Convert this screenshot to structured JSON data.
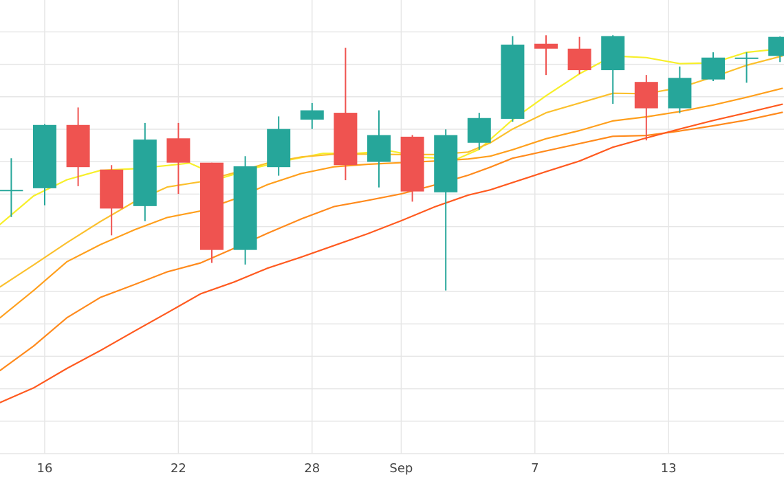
{
  "chart_data": {
    "type": "candlestick",
    "title": "",
    "xlabel": "",
    "ylabel": "",
    "x_ticks": [
      {
        "day": 16,
        "label": "16"
      },
      {
        "day": 22,
        "label": "22"
      },
      {
        "day": 28,
        "label": "28"
      },
      {
        "day": 32,
        "label": "Sep"
      },
      {
        "day": 38,
        "label": "7"
      },
      {
        "day": 44,
        "label": "13"
      }
    ],
    "x_range": [
      14,
      49.1
    ],
    "y_range": [
      0,
      100
    ],
    "grid": true,
    "legend": "none",
    "colors": {
      "up": "#26a69a",
      "down": "#ef5350",
      "grid": "#e6e6e6",
      "axis_text": "#444444"
    },
    "candles": [
      {
        "day": 14.5,
        "open": 65.0,
        "high": 72.8,
        "low": 58.3,
        "close": 65.0
      },
      {
        "day": 16,
        "open": 65.4,
        "high": 81.2,
        "low": 61.2,
        "close": 81.0
      },
      {
        "day": 17.5,
        "open": 81.0,
        "high": 85.3,
        "low": 65.9,
        "close": 70.6
      },
      {
        "day": 19,
        "open": 70.0,
        "high": 71.1,
        "low": 53.8,
        "close": 60.4
      },
      {
        "day": 20.5,
        "open": 61.0,
        "high": 81.5,
        "low": 57.3,
        "close": 77.4
      },
      {
        "day": 22,
        "open": 77.7,
        "high": 81.5,
        "low": 64.0,
        "close": 71.7
      },
      {
        "day": 23.5,
        "open": 71.7,
        "high": 71.7,
        "low": 47.0,
        "close": 50.2
      },
      {
        "day": 25,
        "open": 50.2,
        "high": 73.3,
        "low": 46.6,
        "close": 70.8
      },
      {
        "day": 26.5,
        "open": 70.6,
        "high": 83.1,
        "low": 68.5,
        "close": 80.0
      },
      {
        "day": 28,
        "open": 82.3,
        "high": 86.4,
        "low": 80.0,
        "close": 84.6
      },
      {
        "day": 29.5,
        "open": 84.0,
        "high": 100.0,
        "low": 67.4,
        "close": 71.1
      },
      {
        "day": 31,
        "open": 71.9,
        "high": 84.6,
        "low": 65.6,
        "close": 78.5
      },
      {
        "day": 32.5,
        "open": 78.1,
        "high": 78.5,
        "low": 62.1,
        "close": 64.6
      },
      {
        "day": 34,
        "open": 64.4,
        "high": 79.9,
        "low": 40.2,
        "close": 78.5
      },
      {
        "day": 35.5,
        "open": 76.6,
        "high": 84.0,
        "low": 74.9,
        "close": 82.7
      },
      {
        "day": 37,
        "open": 82.5,
        "high": 102.9,
        "low": 81.8,
        "close": 100.8
      },
      {
        "day": 38.5,
        "open": 101.0,
        "high": 103.1,
        "low": 93.3,
        "close": 99.8
      },
      {
        "day": 40,
        "open": 99.8,
        "high": 102.7,
        "low": 93.5,
        "close": 94.5
      },
      {
        "day": 41.5,
        "open": 94.5,
        "high": 103.1,
        "low": 86.2,
        "close": 102.9
      },
      {
        "day": 43,
        "open": 91.6,
        "high": 93.3,
        "low": 77.2,
        "close": 85.1
      },
      {
        "day": 44.5,
        "open": 85.1,
        "high": 95.4,
        "low": 83.9,
        "close": 92.6
      },
      {
        "day": 46,
        "open": 92.2,
        "high": 98.9,
        "low": 91.8,
        "close": 97.6
      },
      {
        "day": 47.5,
        "open": 97.6,
        "high": 98.9,
        "low": 91.4,
        "close": 97.6
      },
      {
        "day": 49,
        "open": 98.0,
        "high": 102.8,
        "low": 96.5,
        "close": 102.7
      }
    ],
    "moving_averages": [
      {
        "color": "#f7ef2a",
        "points": [
          [
            14,
            56.5
          ],
          [
            15.5,
            63.5
          ],
          [
            17,
            67.5
          ],
          [
            18.5,
            69.8
          ],
          [
            20,
            70.2
          ],
          [
            21.5,
            71.0
          ],
          [
            22.5,
            71.6
          ],
          [
            24,
            68.0
          ],
          [
            25.5,
            70.5
          ],
          [
            27,
            72.4
          ],
          [
            28.5,
            74.0
          ],
          [
            30,
            74.0
          ],
          [
            31.5,
            74.6
          ],
          [
            33,
            73.0
          ],
          [
            34.5,
            72.6
          ],
          [
            35.5,
            75.0
          ],
          [
            37,
            82.3
          ],
          [
            38.5,
            88.2
          ],
          [
            40,
            93.6
          ],
          [
            41.5,
            98.0
          ],
          [
            43,
            97.6
          ],
          [
            44.5,
            96.1
          ],
          [
            46,
            96.3
          ],
          [
            47.5,
            98.9
          ],
          [
            49.1,
            99.8
          ]
        ]
      },
      {
        "color": "#fbc02d",
        "points": [
          [
            14,
            41.1
          ],
          [
            15.5,
            46.5
          ],
          [
            17,
            52.0
          ],
          [
            18.5,
            57.2
          ],
          [
            20,
            62.0
          ],
          [
            21.5,
            65.7
          ],
          [
            23,
            67.0
          ],
          [
            24.5,
            69.2
          ],
          [
            26,
            71.6
          ],
          [
            27.5,
            73.1
          ],
          [
            29,
            73.8
          ],
          [
            30.5,
            73.8
          ],
          [
            32,
            73.7
          ],
          [
            33.5,
            73.7
          ],
          [
            35,
            74.3
          ],
          [
            36,
            76.6
          ],
          [
            37,
            80.0
          ],
          [
            38.5,
            84.0
          ],
          [
            40,
            86.4
          ],
          [
            41.5,
            88.8
          ],
          [
            43,
            88.7
          ],
          [
            44.5,
            90.2
          ],
          [
            46,
            92.8
          ],
          [
            47.5,
            95.7
          ],
          [
            49.1,
            98.0
          ]
        ]
      },
      {
        "color": "#ff9f1c",
        "points": [
          [
            14,
            33.5
          ],
          [
            15.5,
            40.2
          ],
          [
            17,
            47.3
          ],
          [
            18.5,
            51.5
          ],
          [
            20,
            55.1
          ],
          [
            21.5,
            58.2
          ],
          [
            23,
            59.8
          ],
          [
            24.5,
            62.7
          ],
          [
            26,
            66.3
          ],
          [
            27.5,
            69.0
          ],
          [
            29,
            70.7
          ],
          [
            30.5,
            71.3
          ],
          [
            32,
            71.7
          ],
          [
            33.5,
            72.1
          ],
          [
            35,
            72.6
          ],
          [
            36,
            73.3
          ],
          [
            37,
            74.9
          ],
          [
            38.5,
            77.6
          ],
          [
            40,
            79.6
          ],
          [
            41.5,
            82.0
          ],
          [
            43,
            83.0
          ],
          [
            44.5,
            84.3
          ],
          [
            46,
            85.9
          ],
          [
            47.5,
            87.8
          ],
          [
            49.1,
            90.0
          ]
        ]
      },
      {
        "color": "#ff8a1c",
        "points": [
          [
            14,
            20.5
          ],
          [
            15.5,
            26.5
          ],
          [
            17,
            33.5
          ],
          [
            18.5,
            38.5
          ],
          [
            20,
            41.6
          ],
          [
            21.5,
            44.8
          ],
          [
            23,
            47.0
          ],
          [
            24.5,
            50.6
          ],
          [
            26,
            54.3
          ],
          [
            27.5,
            57.8
          ],
          [
            29,
            60.9
          ],
          [
            30.5,
            62.4
          ],
          [
            32,
            64.0
          ],
          [
            33.5,
            66.2
          ],
          [
            35,
            68.6
          ],
          [
            36,
            70.6
          ],
          [
            37,
            72.8
          ],
          [
            38.5,
            74.6
          ],
          [
            40,
            76.4
          ],
          [
            41.5,
            78.2
          ],
          [
            43,
            78.4
          ],
          [
            44.5,
            79.5
          ],
          [
            46,
            80.8
          ],
          [
            47.5,
            82.2
          ],
          [
            49.1,
            84.1
          ]
        ]
      },
      {
        "color": "#ff5a1f",
        "points": [
          [
            14,
            12.6
          ],
          [
            15.5,
            16.2
          ],
          [
            17,
            21.0
          ],
          [
            18.5,
            25.4
          ],
          [
            20,
            30.1
          ],
          [
            21.5,
            34.7
          ],
          [
            23,
            39.4
          ],
          [
            24.5,
            42.3
          ],
          [
            26,
            45.7
          ],
          [
            27.5,
            48.4
          ],
          [
            29,
            51.3
          ],
          [
            30.5,
            54.2
          ],
          [
            32,
            57.4
          ],
          [
            33.5,
            60.8
          ],
          [
            35,
            63.7
          ],
          [
            36,
            65.0
          ],
          [
            37,
            66.8
          ],
          [
            38.5,
            69.5
          ],
          [
            40,
            72.1
          ],
          [
            41.5,
            75.5
          ],
          [
            43,
            77.8
          ],
          [
            44.5,
            80.0
          ],
          [
            46,
            82.1
          ],
          [
            47.5,
            84.0
          ],
          [
            49.1,
            86.1
          ]
        ]
      }
    ]
  }
}
